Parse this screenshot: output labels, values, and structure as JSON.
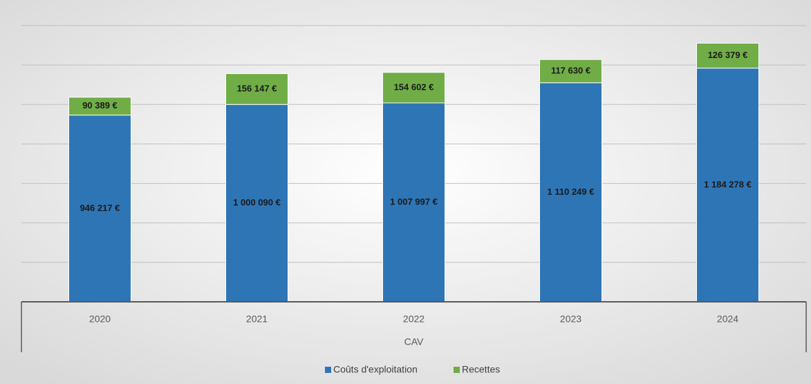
{
  "chart_data": {
    "type": "stacked_bar",
    "categories": [
      "2020",
      "2021",
      "2022",
      "2023",
      "2024"
    ],
    "axis_group_label": "CAV",
    "series": [
      {
        "name": "Coûts d'exploitation",
        "color": "#2e75b6",
        "values": [
          946217,
          1000090,
          1007997,
          1110249,
          1184278
        ],
        "value_labels": [
          "946 217 €",
          "1 000 090 €",
          "1 007 997 €",
          "1 110 249 €",
          "1 184 278 €"
        ]
      },
      {
        "name": "Recettes",
        "color": "#70ad47",
        "values": [
          90389,
          156147,
          154602,
          117630,
          126379
        ],
        "value_labels": [
          "90 389 €",
          "156 147 €",
          "154 602 €",
          "117 630 €",
          "126 379 €"
        ]
      }
    ],
    "ylim": [
      0,
      1400000
    ],
    "yticks": [
      0,
      200000,
      400000,
      600000,
      800000,
      1000000,
      1200000,
      1400000
    ],
    "grid": true,
    "legend": "bottom"
  }
}
